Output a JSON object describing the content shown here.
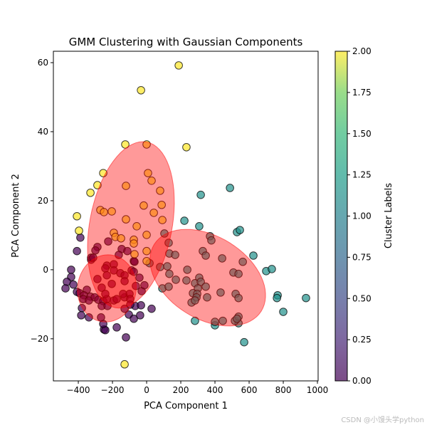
{
  "chart_data": {
    "type": "scatter",
    "title": "GMM Clustering with Gaussian Components",
    "xlabel": "PCA Component 1",
    "ylabel": "PCA Component 2",
    "xlim": [
      -546,
      1004
    ],
    "ylim": [
      -32.2,
      63.3
    ],
    "xticks": [
      -400,
      -200,
      0,
      200,
      400,
      600,
      800,
      1000
    ],
    "yticks": [
      -20,
      0,
      20,
      40,
      60
    ],
    "grid": false,
    "colorbar": {
      "label": "Cluster Labels",
      "range": [
        0,
        2
      ],
      "colormap": "viridis",
      "ticks": [
        "0.00",
        "0.25",
        "0.50",
        "0.75",
        "1.00",
        "1.25",
        "1.50",
        "1.75",
        "2.00"
      ]
    },
    "cluster_colors": {
      "0": "#440154",
      "1": "#21918c",
      "2": "#fde725"
    },
    "ellipse_color": "#ff0000",
    "clusters": [
      {
        "label": 0,
        "points": [
          [
            -442,
            0
          ],
          [
            -442,
            -2.1
          ],
          [
            -467,
            -3.5
          ],
          [
            -475,
            -5.4
          ],
          [
            -429,
            -4.3
          ],
          [
            -408,
            -6.4
          ],
          [
            -325,
            2.9
          ],
          [
            -379,
            -11.1
          ],
          [
            -383,
            -13.2
          ],
          [
            -338,
            -13.8
          ],
          [
            -250,
            -17.3
          ],
          [
            -242,
            -17.5
          ],
          [
            -175,
            -16.7
          ],
          [
            -121,
            -19.6
          ],
          [
            -104,
            -13.0
          ],
          [
            -75,
            -14.2
          ],
          [
            -38,
            -13.2
          ],
          [
            -67,
            -10.5
          ],
          [
            -33,
            -10.3
          ],
          [
            29,
            -11.3
          ],
          [
            -29,
            -6.2
          ],
          [
            -254,
            -15.7
          ],
          [
            -388,
            9.3
          ],
          [
            -408,
            5.4
          ],
          [
            -325,
            3.5
          ],
          [
            -233,
            1.2
          ],
          [
            -192,
            1.6
          ],
          [
            -242,
            0.4
          ],
          [
            -192,
            -0.2
          ],
          [
            -233,
            -1.6
          ],
          [
            -288,
            -2.7
          ],
          [
            -154,
            -1.0
          ],
          [
            -129,
            -1.6
          ],
          [
            -88,
            -0.2
          ],
          [
            -75,
            -0.6
          ],
          [
            -42,
            -2.3
          ],
          [
            -13,
            -4.5
          ],
          [
            -63,
            -4.7
          ],
          [
            -129,
            -3.3
          ],
          [
            -204,
            -4.1
          ],
          [
            -263,
            -5.2
          ],
          [
            -350,
            -5.8
          ],
          [
            -392,
            -6.8
          ],
          [
            -367,
            -7.4
          ],
          [
            -329,
            -7.8
          ],
          [
            -371,
            -8.5
          ],
          [
            -338,
            -8.9
          ],
          [
            -304,
            -8.0
          ],
          [
            -283,
            -8.7
          ],
          [
            -254,
            -9.1
          ],
          [
            -233,
            -8.5
          ],
          [
            -242,
            -7.0
          ],
          [
            -192,
            -8.9
          ],
          [
            -175,
            -8.5
          ],
          [
            -129,
            -8.0
          ],
          [
            -100,
            -7.0
          ],
          [
            -138,
            -7.0
          ],
          [
            -96,
            -8.5
          ],
          [
            -263,
            -10.5
          ],
          [
            -229,
            -10.5
          ],
          [
            -267,
            -13.8
          ],
          [
            -96,
            -10.1
          ],
          [
            -129,
            -11.3
          ],
          [
            -75,
            2.5
          ],
          [
            -225,
            8.2
          ],
          [
            -288,
            6.6
          ],
          [
            -300,
            5.6
          ],
          [
            -313,
            3.5
          ],
          [
            -146,
            6.0
          ],
          [
            -113,
            5.4
          ],
          [
            -163,
            4.3
          ],
          [
            -71,
            2.3
          ]
        ]
      },
      {
        "label": 1,
        "points": [
          [
            488,
            23.7
          ],
          [
            317,
            21.7
          ],
          [
            221,
            14.2
          ],
          [
            308,
            12.6
          ],
          [
            529,
            10.9
          ],
          [
            546,
            11.5
          ],
          [
            625,
            4.1
          ],
          [
            700,
            -0.4
          ],
          [
            733,
            0.2
          ],
          [
            767,
            -7.4
          ],
          [
            763,
            -8.2
          ],
          [
            933,
            -8.2
          ],
          [
            800,
            -12.2
          ],
          [
            571,
            -21.0
          ],
          [
            283,
            -14.8
          ],
          [
            400,
            -16.1
          ],
          [
            400,
            -15.1
          ],
          [
            538,
            -15.5
          ],
          [
            92,
            -5.4
          ],
          [
            104,
            10.5
          ],
          [
            129,
            7.8
          ],
          [
            133,
            4.7
          ],
          [
            167,
            4.3
          ],
          [
            79,
            0.8
          ],
          [
            121,
            1.0
          ],
          [
            133,
            -1.2
          ],
          [
            171,
            -2.9
          ],
          [
            129,
            -4.9
          ],
          [
            238,
            0
          ],
          [
            233,
            -3.1
          ],
          [
            283,
            -3.9
          ],
          [
            308,
            -2.3
          ],
          [
            317,
            -3.5
          ],
          [
            300,
            -5.4
          ],
          [
            346,
            -4.9
          ],
          [
            271,
            -6.8
          ],
          [
            296,
            -7.0
          ],
          [
            292,
            -8.0
          ],
          [
            263,
            -9.5
          ],
          [
            283,
            -8.9
          ],
          [
            354,
            -8.0
          ],
          [
            329,
            5.4
          ],
          [
            346,
            4.1
          ],
          [
            371,
            9.7
          ],
          [
            379,
            8.5
          ],
          [
            442,
            3.3
          ],
          [
            563,
            2.3
          ],
          [
            508,
            -0.8
          ],
          [
            538,
            -1.2
          ],
          [
            433,
            -6.6
          ],
          [
            521,
            -7.0
          ],
          [
            538,
            -8.2
          ],
          [
            446,
            -14.8
          ],
          [
            517,
            -14.8
          ],
          [
            538,
            -13.6
          ],
          [
            529,
            -14.2
          ],
          [
            17,
            1.9
          ]
        ]
      },
      {
        "label": 2,
        "points": [
          [
            -33,
            52.0
          ],
          [
            188,
            59.2
          ],
          [
            -125,
            36.3
          ],
          [
            0,
            36.3
          ],
          [
            233,
            35.5
          ],
          [
            -254,
            28.0
          ],
          [
            8,
            28.0
          ],
          [
            29,
            25.8
          ],
          [
            -288,
            24.5
          ],
          [
            -121,
            24.3
          ],
          [
            -329,
            22.3
          ],
          [
            79,
            22.9
          ],
          [
            88,
            18.8
          ],
          [
            -17,
            18.6
          ],
          [
            -408,
            15.5
          ],
          [
            -271,
            17.3
          ],
          [
            -250,
            16.7
          ],
          [
            -204,
            16.9
          ],
          [
            42,
            16.5
          ],
          [
            92,
            14.4
          ],
          [
            -121,
            14.6
          ],
          [
            -396,
            11.3
          ],
          [
            -58,
            12.6
          ],
          [
            -192,
            10.7
          ],
          [
            -183,
            9.5
          ],
          [
            -150,
            9.1
          ],
          [
            -75,
            8.7
          ],
          [
            -75,
            7.6
          ],
          [
            0,
            10.1
          ],
          [
            0,
            5.4
          ],
          [
            -71,
            4.5
          ],
          [
            0,
            2.5
          ],
          [
            -129,
            -27.4
          ]
        ]
      }
    ],
    "ellipses": [
      {
        "center": [
          -92,
          13
        ],
        "axis_a": [
          92,
          24
        ],
        "axis_b": [
          237,
          -2.2
        ]
      },
      {
        "center": [
          358,
          -2.3
        ],
        "axis_a": [
          313,
          -9.7
        ],
        "axis_b": [
          -129,
          -10.1
        ]
      },
      {
        "center": [
          -233,
          -5.4
        ],
        "axis_a": [
          21,
          9.7
        ],
        "axis_b": [
          171,
          -0.8
        ]
      }
    ]
  },
  "watermark": "CSDN @小馒头学python"
}
